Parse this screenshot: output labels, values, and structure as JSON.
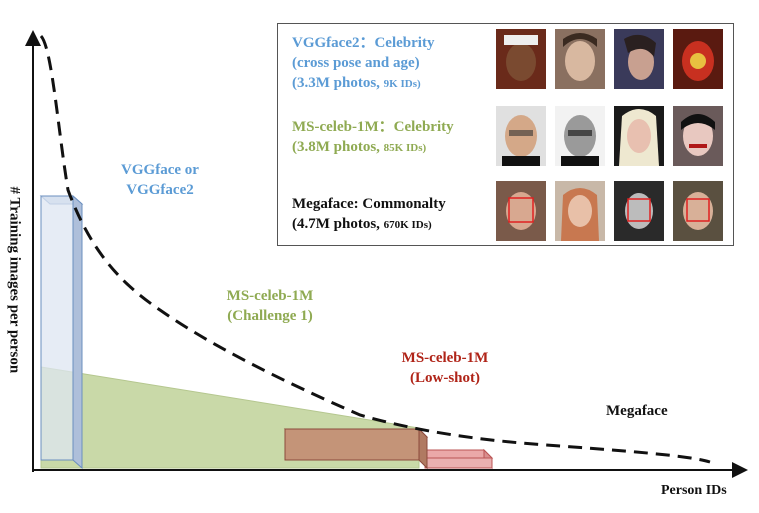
{
  "axes": {
    "y_label": "# Training images per person",
    "x_label": "Person IDs"
  },
  "regions": {
    "vggface": {
      "line1": "VGGface or",
      "line2": "VGGface2"
    },
    "challenge1": {
      "line1": "MS-celeb-1M",
      "line2": "(Challenge 1)"
    },
    "lowshot": {
      "line1": "MS-celeb-1M",
      "line2": "(Low-shot)"
    },
    "megaface": {
      "label": "Megaface"
    }
  },
  "legend": {
    "vggface2": {
      "line1": "VGGface2：Celebrity",
      "line2": "(cross pose and age)",
      "line3a": "(3.3M photos, ",
      "line3b": "9K IDs)"
    },
    "msceleb": {
      "line1": "MS-celeb-1M：Celebrity",
      "line2a": "(3.8M photos, ",
      "line2b": "85K IDs)"
    },
    "megaface": {
      "line1": "Megaface: Commonalty",
      "line2a": "(4.7M photos, ",
      "line2b": "670K IDs)"
    }
  },
  "colors": {
    "vgg_text": "#5b9bd5",
    "challenge_text": "#8faa52",
    "lowshot_text": "#b02418",
    "vgg_fill": "#dde6f2",
    "challenge_fill": "#c9d9a8",
    "lowshot_fill": "#c49478",
    "lowshot_fill2": "#eaa8a8"
  },
  "icons": [
    "face-thumbnail"
  ]
}
